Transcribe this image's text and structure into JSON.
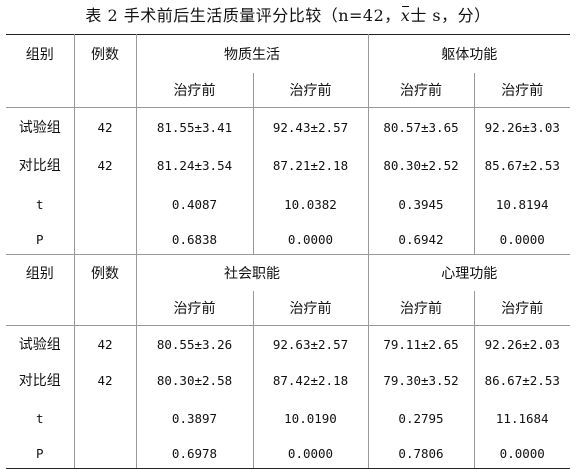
{
  "caption": {
    "prefix": "表 2 手术前后生活质量评分比较（n=42，",
    "xbar": "x",
    "suffix": "士 s，分）"
  },
  "tables": [
    {
      "header": {
        "group": "组别",
        "count": "例数",
        "domain_a": "物质生活",
        "domain_b": "躯体功能",
        "sub": [
          "治疗前",
          "治疗前",
          "治疗前",
          "治疗前"
        ]
      },
      "rows": [
        {
          "group": "试验组",
          "count": "42",
          "v": [
            "81.55±3.41",
            "92.43±2.57",
            "80.57±3.65",
            "92.26±3.03"
          ]
        },
        {
          "group": "对比组",
          "count": "42",
          "v": [
            "81.24±3.54",
            "87.21±2.18",
            "80.30±2.52",
            "85.67±2.53"
          ]
        },
        {
          "group": "t",
          "count": "",
          "v": [
            "0.4087",
            "10.0382",
            "0.3945",
            "10.8194"
          ]
        },
        {
          "group": "P",
          "count": "",
          "v": [
            "0.6838",
            "0.0000",
            "0.6942",
            "0.0000"
          ]
        }
      ]
    },
    {
      "header": {
        "group": "组别",
        "count": "例数",
        "domain_a": "社会职能",
        "domain_b": "心理功能",
        "sub": [
          "治疗前",
          "治疗前",
          "治疗前",
          "治疗前"
        ]
      },
      "rows": [
        {
          "group": "试验组",
          "count": "42",
          "v": [
            "80.55±3.26",
            "92.63±2.57",
            "79.11±2.65",
            "92.26±2.03"
          ]
        },
        {
          "group": "对比组",
          "count": "42",
          "v": [
            "80.30±2.58",
            "87.42±2.18",
            "79.30±3.52",
            "86.67±2.53"
          ]
        },
        {
          "group": "t",
          "count": "",
          "v": [
            "0.3897",
            "10.0190",
            "0.2795",
            "11.1684"
          ]
        },
        {
          "group": "P",
          "count": "",
          "v": [
            "0.6978",
            "0.0000",
            "0.7806",
            "0.0000"
          ]
        }
      ]
    }
  ]
}
